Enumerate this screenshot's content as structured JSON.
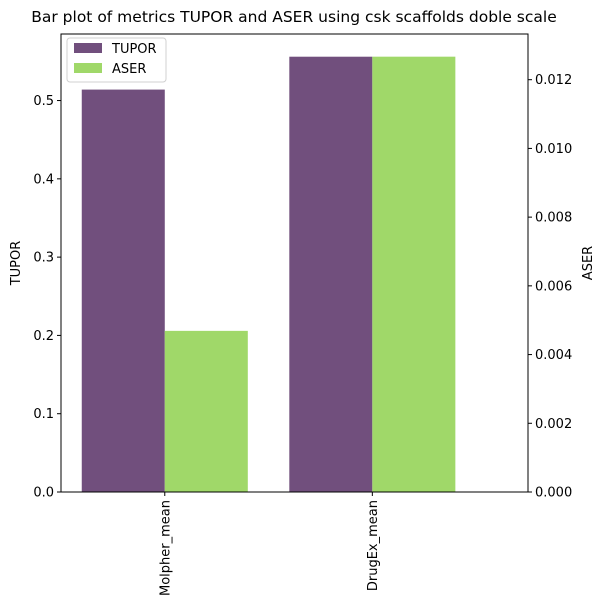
{
  "chart_data": {
    "type": "bar",
    "title": "Bar plot of metrics TUPOR and ASER using csk scaffolds doble scale",
    "categories": [
      "Molpher_mean",
      "DrugEx_mean"
    ],
    "xlabel": "",
    "series": [
      {
        "name": "TUPOR",
        "axis": "left",
        "color": "#714f7d",
        "values": [
          0.514,
          0.556
        ]
      },
      {
        "name": "ASER",
        "axis": "right",
        "color": "#a0d869",
        "values": [
          0.00469,
          0.01267
        ]
      }
    ],
    "y_left": {
      "label": "TUPOR",
      "ylim": [
        0,
        0.585
      ],
      "ticks": [
        0.0,
        0.1,
        0.2,
        0.3,
        0.4,
        0.5
      ],
      "tick_labels": [
        "0.0",
        "0.1",
        "0.2",
        "0.3",
        "0.4",
        "0.5"
      ]
    },
    "y_right": {
      "label": "ASER",
      "ylim": [
        0,
        0.01333
      ],
      "ticks": [
        0,
        0.002,
        0.004,
        0.006,
        0.008,
        0.01,
        0.012
      ],
      "tick_labels": [
        "0.000",
        "0.002",
        "0.004",
        "0.006",
        "0.008",
        "0.010",
        "0.012"
      ]
    },
    "legend": {
      "position": "top-left",
      "entries": [
        "TUPOR",
        "ASER"
      ]
    },
    "grid": false
  }
}
